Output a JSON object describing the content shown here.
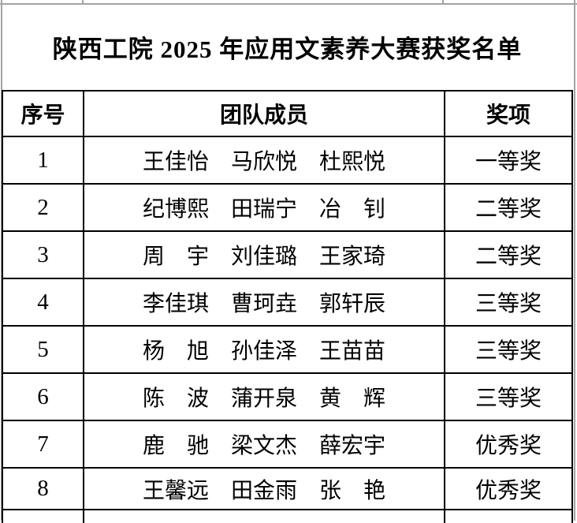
{
  "page": {
    "title": "陕西工院 2025 年应用文素养大赛获奖名单"
  },
  "table": {
    "headers": {
      "no": "序号",
      "members": "团队成员",
      "award": "奖项"
    },
    "rows": [
      {
        "no": "1",
        "members": "王佳怡　马欣悦　杜熙悦",
        "award": "一等奖"
      },
      {
        "no": "2",
        "members": "纪博熙　田瑞宁　冶　钊",
        "award": "二等奖"
      },
      {
        "no": "3",
        "members": "周　宇　刘佳璐　王家琦",
        "award": "二等奖"
      },
      {
        "no": "4",
        "members": "李佳琪　曹珂垚　郭轩辰",
        "award": "三等奖"
      },
      {
        "no": "5",
        "members": "杨　旭　孙佳泽　王苗苗",
        "award": "三等奖"
      },
      {
        "no": "6",
        "members": "陈　波　蒲开泉　黄　辉",
        "award": "三等奖"
      },
      {
        "no": "7",
        "members": "鹿　驰　梁文杰　薛宏宇",
        "award": "优秀奖"
      },
      {
        "no": "8",
        "members": "王馨远　田金雨　张　艳",
        "award": "优秀奖"
      }
    ],
    "colors": {
      "border": "#000000",
      "gridline": "#a3a3a3",
      "background": "#ffffff",
      "text": "#000000"
    }
  }
}
